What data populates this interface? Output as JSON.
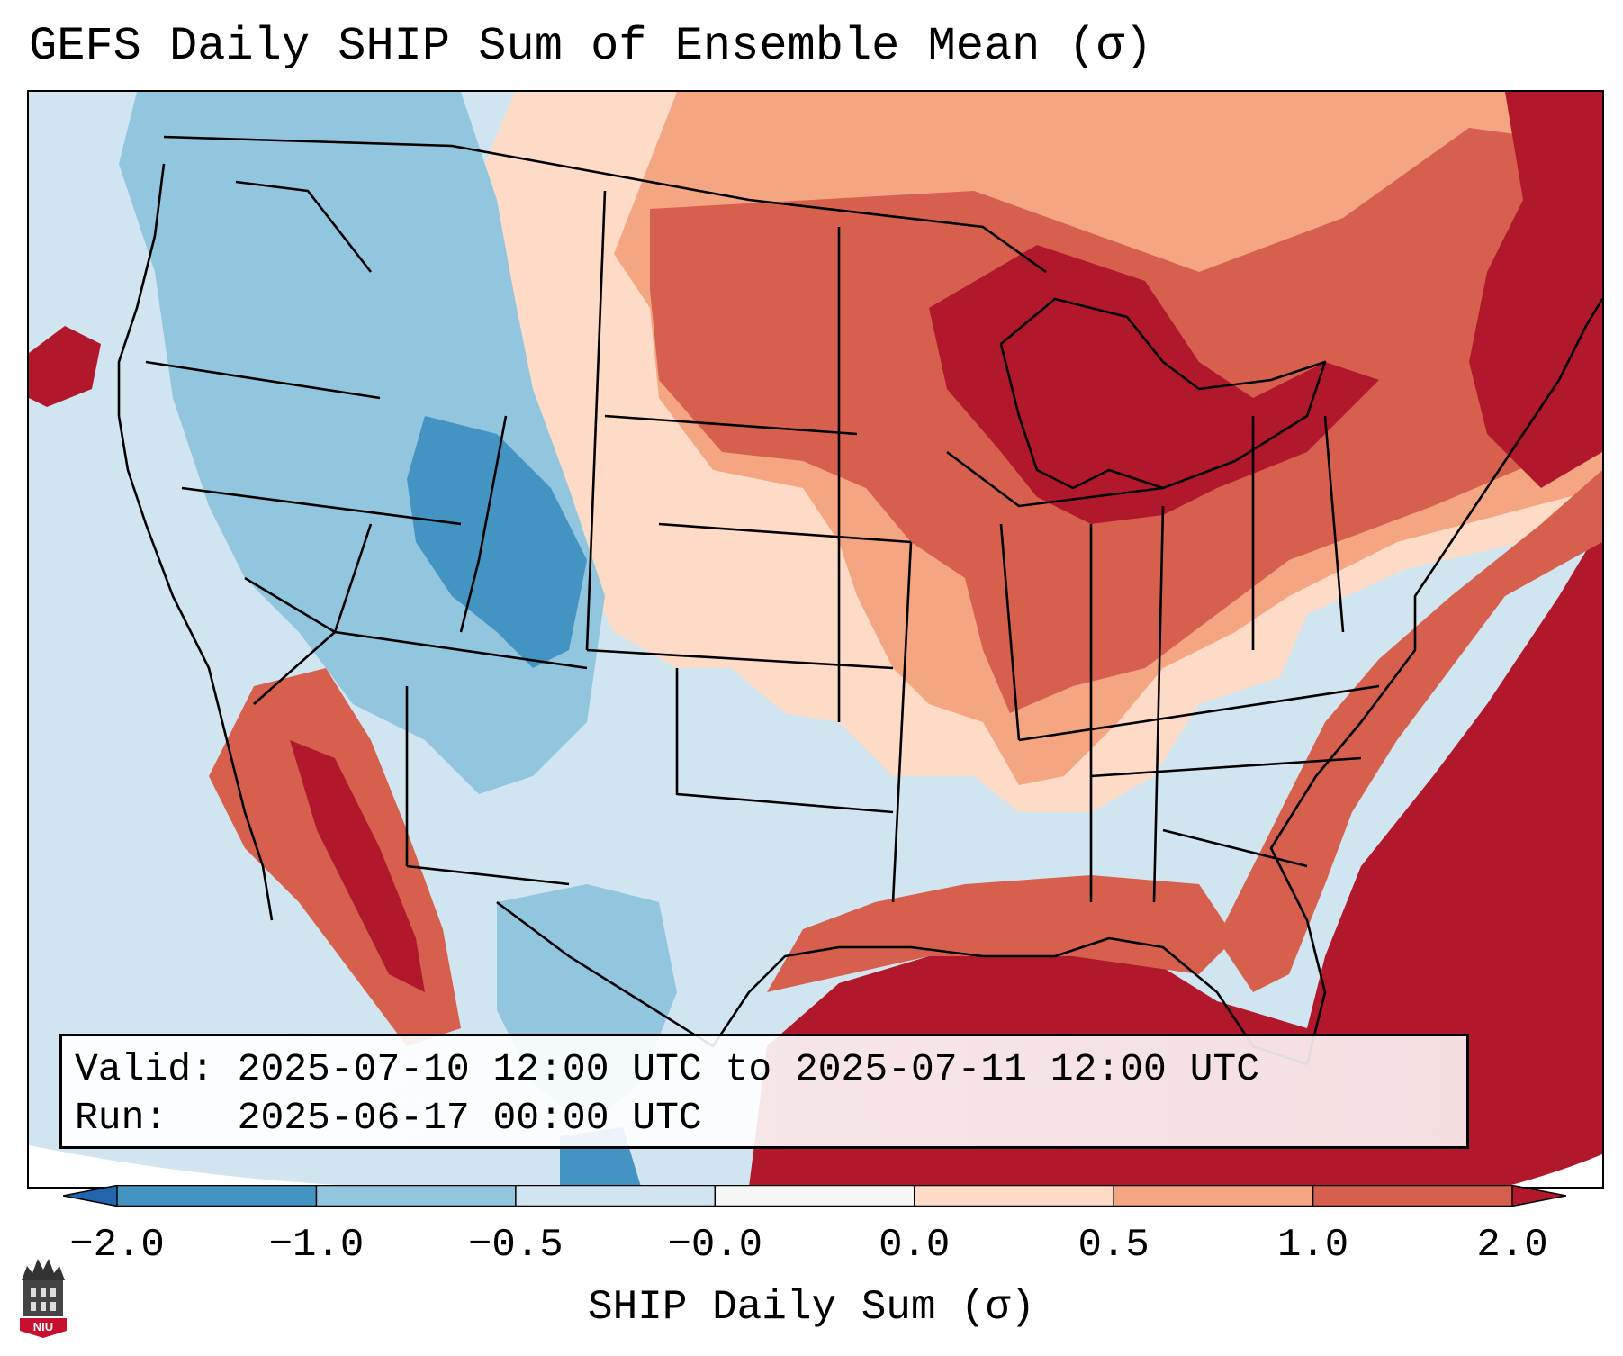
{
  "title": "GEFS Daily SHIP Sum of Ensemble Mean (σ)",
  "info": {
    "valid_label": "Valid:",
    "valid_value": "2025-07-10 12:00 UTC to 2025-07-11 12:00 UTC",
    "run_label": "Run:",
    "run_value": "2025-06-17 00:00 UTC"
  },
  "colorbar": {
    "label": "SHIP Daily Sum (σ)",
    "ticks": [
      "−2.0",
      "−1.0",
      "−0.5",
      "−0.0",
      "0.0",
      "0.5",
      "1.0",
      "2.0"
    ],
    "colors": [
      "#2166ac",
      "#4393c3",
      "#92c5de",
      "#d1e5f0",
      "#f7f7f7",
      "#fddbc7",
      "#f4a582",
      "#d6604d",
      "#b2182b"
    ],
    "extend": "both"
  },
  "map": {
    "region": "Contiguous United States, southern Canada, northern Mexico",
    "projection": "Lambert Conformal",
    "colors": {
      "neutral_water": "#d1e5f0",
      "strong_positive": "#b2182b",
      "positive": "#d6604d",
      "weak_positive": "#fddbc7",
      "weak_negative": "#92c5de",
      "negative": "#4393c3"
    }
  },
  "logo": {
    "text": "NIU",
    "icon": "niu-logo-icon"
  }
}
